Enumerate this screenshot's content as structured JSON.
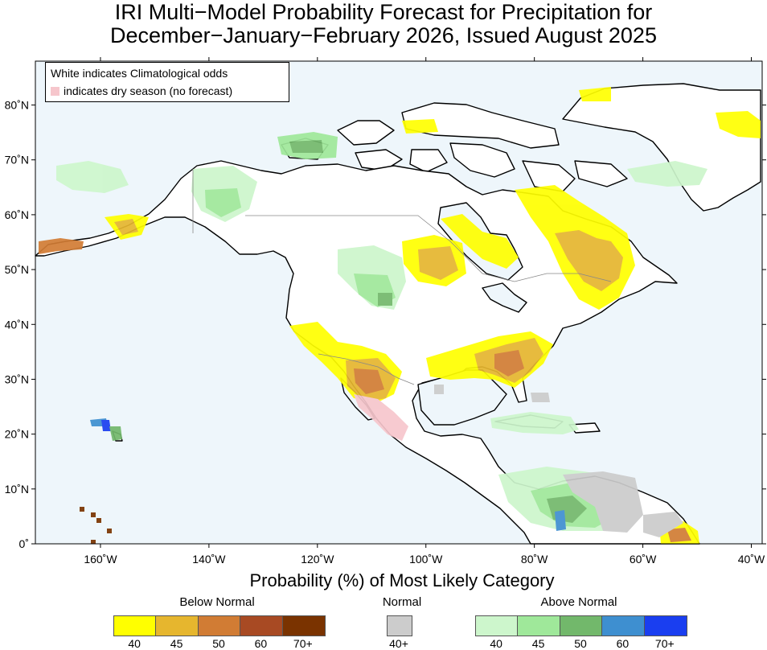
{
  "title": {
    "line1": "IRI Multi−Model Probability Forecast for Precipitation for",
    "line2": "December−January−February 2026, Issued August 2025"
  },
  "legend": {
    "line1": "White indicates Climatological odds",
    "line2": "indicates dry season (no forecast)",
    "dry_color": "#f6c6cc"
  },
  "axes": {
    "lon_labels": [
      "160˚W",
      "140˚W",
      "120˚W",
      "100˚W",
      "80˚W",
      "60˚W",
      "40˚W"
    ],
    "lat_labels": [
      "80˚N",
      "70˚N",
      "60˚N",
      "50˚N",
      "40˚N",
      "30˚N",
      "20˚N",
      "10˚N",
      "0˚"
    ],
    "lon_range": [
      -172,
      -38
    ],
    "lat_range": [
      0,
      88
    ]
  },
  "colorbar": {
    "title": "Probability (%) of Most Likely Category",
    "below": {
      "label": "Below Normal",
      "colors": [
        "#ffff00",
        "#e6b62e",
        "#d17c34",
        "#a84a23",
        "#7a3300"
      ],
      "ticks": [
        "40",
        "45",
        "50",
        "60",
        "70+"
      ]
    },
    "normal": {
      "label": "Normal",
      "colors": [
        "#cccccc"
      ],
      "ticks": [
        "40+"
      ]
    },
    "above": {
      "label": "Above Normal",
      "colors": [
        "#cdf6cc",
        "#9fe89a",
        "#72b86b",
        "#3e8fd0",
        "#1a3ef0"
      ],
      "ticks": [
        "40",
        "45",
        "50",
        "60",
        "70+"
      ]
    }
  },
  "colors": {
    "ocean": "#eef6fb",
    "land": "#ffffff"
  }
}
